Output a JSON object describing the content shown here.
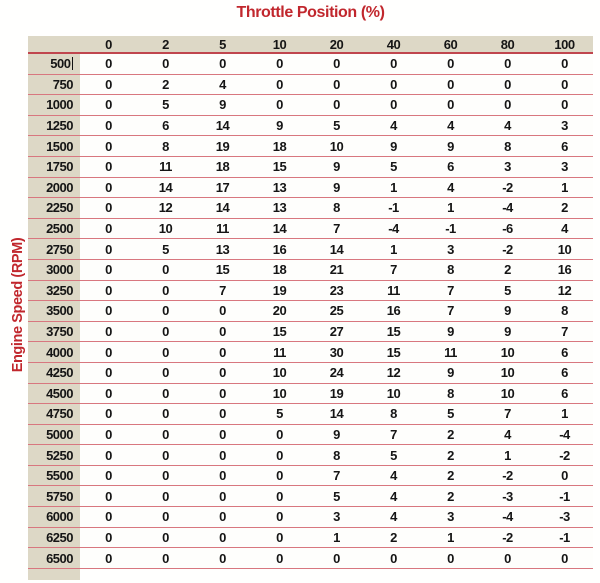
{
  "chart_data": {
    "type": "table",
    "title": "Throttle Position (%)",
    "ylabel": "Engine Speed (RPM)",
    "columns": [
      "0",
      "2",
      "5",
      "10",
      "20",
      "40",
      "60",
      "80",
      "100"
    ],
    "row_labels": [
      "500",
      "750",
      "1000",
      "1250",
      "1500",
      "1750",
      "2000",
      "2250",
      "2500",
      "2750",
      "3000",
      "3250",
      "3500",
      "3750",
      "4000",
      "4250",
      "4500",
      "4750",
      "5000",
      "5250",
      "5500",
      "5750",
      "6000",
      "6250",
      "6500"
    ],
    "values": [
      [
        0,
        0,
        0,
        0,
        0,
        0,
        0,
        0,
        0
      ],
      [
        0,
        2,
        4,
        0,
        0,
        0,
        0,
        0,
        0
      ],
      [
        0,
        5,
        9,
        0,
        0,
        0,
        0,
        0,
        0
      ],
      [
        0,
        6,
        14,
        9,
        5,
        4,
        4,
        4,
        3
      ],
      [
        0,
        8,
        19,
        18,
        10,
        9,
        9,
        8,
        6
      ],
      [
        0,
        11,
        18,
        15,
        9,
        5,
        6,
        3,
        3
      ],
      [
        0,
        14,
        17,
        13,
        9,
        1,
        4,
        -2,
        1
      ],
      [
        0,
        12,
        14,
        13,
        8,
        -1,
        1,
        -4,
        2
      ],
      [
        0,
        10,
        11,
        14,
        7,
        -4,
        -1,
        -6,
        4
      ],
      [
        0,
        5,
        13,
        16,
        14,
        1,
        3,
        -2,
        10
      ],
      [
        0,
        0,
        15,
        18,
        21,
        7,
        8,
        2,
        16
      ],
      [
        0,
        0,
        7,
        19,
        23,
        11,
        7,
        5,
        12
      ],
      [
        0,
        0,
        0,
        20,
        25,
        16,
        7,
        9,
        8
      ],
      [
        0,
        0,
        0,
        15,
        27,
        15,
        9,
        9,
        7
      ],
      [
        0,
        0,
        0,
        11,
        30,
        15,
        11,
        10,
        6
      ],
      [
        0,
        0,
        0,
        10,
        24,
        12,
        9,
        10,
        6
      ],
      [
        0,
        0,
        0,
        10,
        19,
        10,
        8,
        10,
        6
      ],
      [
        0,
        0,
        0,
        5,
        14,
        8,
        5,
        7,
        1
      ],
      [
        0,
        0,
        0,
        0,
        9,
        7,
        2,
        4,
        -4
      ],
      [
        0,
        0,
        0,
        0,
        8,
        5,
        2,
        1,
        -2
      ],
      [
        0,
        0,
        0,
        0,
        7,
        4,
        2,
        -2,
        0
      ],
      [
        0,
        0,
        0,
        0,
        5,
        4,
        2,
        -3,
        -1
      ],
      [
        0,
        0,
        0,
        0,
        3,
        4,
        3,
        -4,
        -3
      ],
      [
        0,
        0,
        0,
        0,
        1,
        2,
        1,
        -2,
        -1
      ],
      [
        0,
        0,
        0,
        0,
        0,
        0,
        0,
        0,
        0
      ]
    ],
    "cursor_in_row": "500",
    "colors": {
      "accent_red": "#c1272d",
      "header_background": "#ddd8c6",
      "row_line": "#d8777f",
      "header_underline": "#c0464e",
      "cell_text": "#151515"
    }
  }
}
